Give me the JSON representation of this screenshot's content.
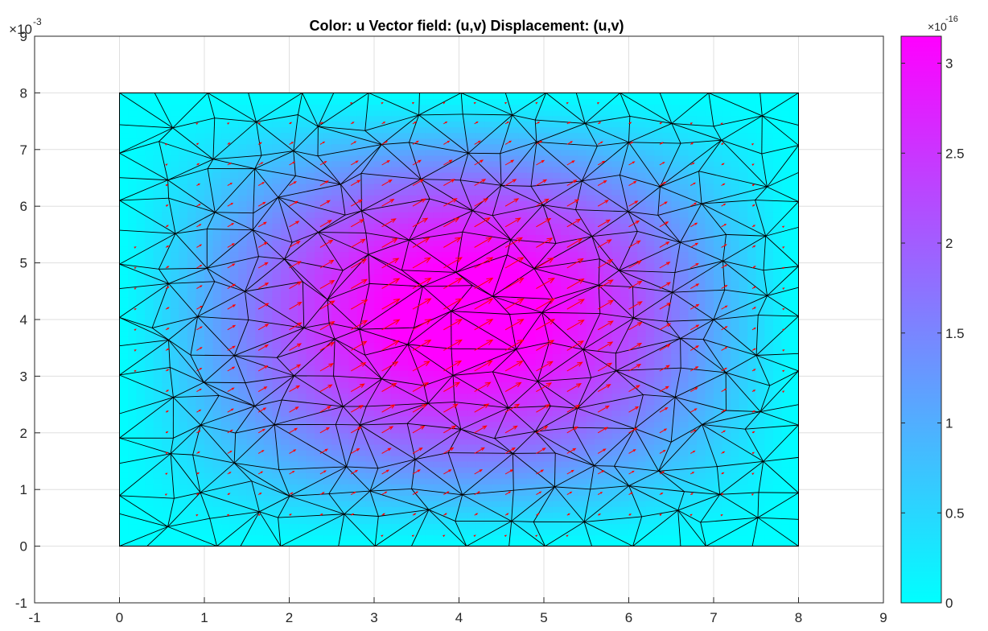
{
  "chart_data": {
    "type": "heatmap",
    "title": "Color: u  Vector field: (u,v)  Displacement: (u,v)",
    "xlabel": "",
    "ylabel": "",
    "xlim": [
      -1,
      9
    ],
    "ylim": [
      -1,
      9
    ],
    "xticks": [
      "-1",
      "0",
      "1",
      "2",
      "3",
      "4",
      "5",
      "6",
      "7",
      "8",
      "9"
    ],
    "yticks": [
      "-1",
      "0",
      "1",
      "2",
      "3",
      "4",
      "5",
      "6",
      "7",
      "8",
      "9"
    ],
    "y_multiplier": {
      "base": "10",
      "exponent": "-3"
    },
    "grid": true,
    "domain": {
      "x": [
        0,
        8
      ],
      "y": [
        0,
        8
      ]
    },
    "color_field": {
      "variable": "u",
      "peak": {
        "x": 4.6,
        "y": 4.8
      },
      "max": 3.15,
      "min": 0
    },
    "colorbar": {
      "ticks": [
        "0",
        "0.5",
        "1",
        "1.5",
        "2",
        "2.5",
        "3"
      ],
      "range": [
        0,
        3.15
      ],
      "multiplier": {
        "base": "10",
        "exponent": "-16"
      },
      "colormap": [
        "#00ffff",
        "#ff00ff"
      ],
      "placement": "right"
    },
    "mesh": {
      "edge_color": "#000000",
      "element": "triangle"
    },
    "vector_field": {
      "color": "#ff0000",
      "direction": "up-right"
    }
  }
}
